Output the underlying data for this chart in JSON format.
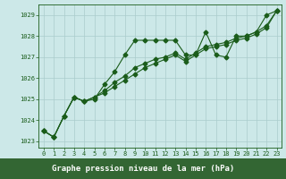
{
  "title": "Graphe pression niveau de la mer (hPa)",
  "bg_color": "#cce8e8",
  "label_bg_color": "#336633",
  "label_text_color": "#ffffff",
  "grid_color": "#aacccc",
  "line_color": "#1a5c1a",
  "xlim": [
    -0.5,
    23.5
  ],
  "ylim": [
    1022.7,
    1029.5
  ],
  "yticks": [
    1023,
    1024,
    1025,
    1026,
    1027,
    1028,
    1029
  ],
  "xticks": [
    0,
    1,
    2,
    3,
    4,
    5,
    6,
    7,
    8,
    9,
    10,
    11,
    12,
    13,
    14,
    15,
    16,
    17,
    18,
    19,
    20,
    21,
    22,
    23
  ],
  "series1": [
    1023.5,
    1023.2,
    1024.2,
    1025.1,
    1024.9,
    1025.0,
    1025.7,
    1026.3,
    1027.1,
    1027.8,
    1027.8,
    1027.8,
    1027.8,
    1027.8,
    1027.1,
    1027.1,
    1028.2,
    1027.1,
    1027.0,
    1028.0,
    1028.0,
    1028.2,
    1029.0,
    1029.2
  ],
  "series2": [
    1023.5,
    1023.2,
    1024.2,
    1025.1,
    1024.9,
    1025.1,
    1025.4,
    1025.8,
    1026.1,
    1026.5,
    1026.7,
    1026.9,
    1027.0,
    1027.2,
    1026.9,
    1027.2,
    1027.5,
    1027.6,
    1027.7,
    1027.9,
    1028.0,
    1028.2,
    1028.5,
    1029.2
  ],
  "series3": [
    1023.5,
    1023.2,
    1024.2,
    1025.1,
    1024.9,
    1025.1,
    1025.3,
    1025.6,
    1025.9,
    1026.2,
    1026.5,
    1026.7,
    1026.9,
    1027.1,
    1026.8,
    1027.1,
    1027.4,
    1027.5,
    1027.6,
    1027.8,
    1027.9,
    1028.1,
    1028.4,
    1029.2
  ]
}
